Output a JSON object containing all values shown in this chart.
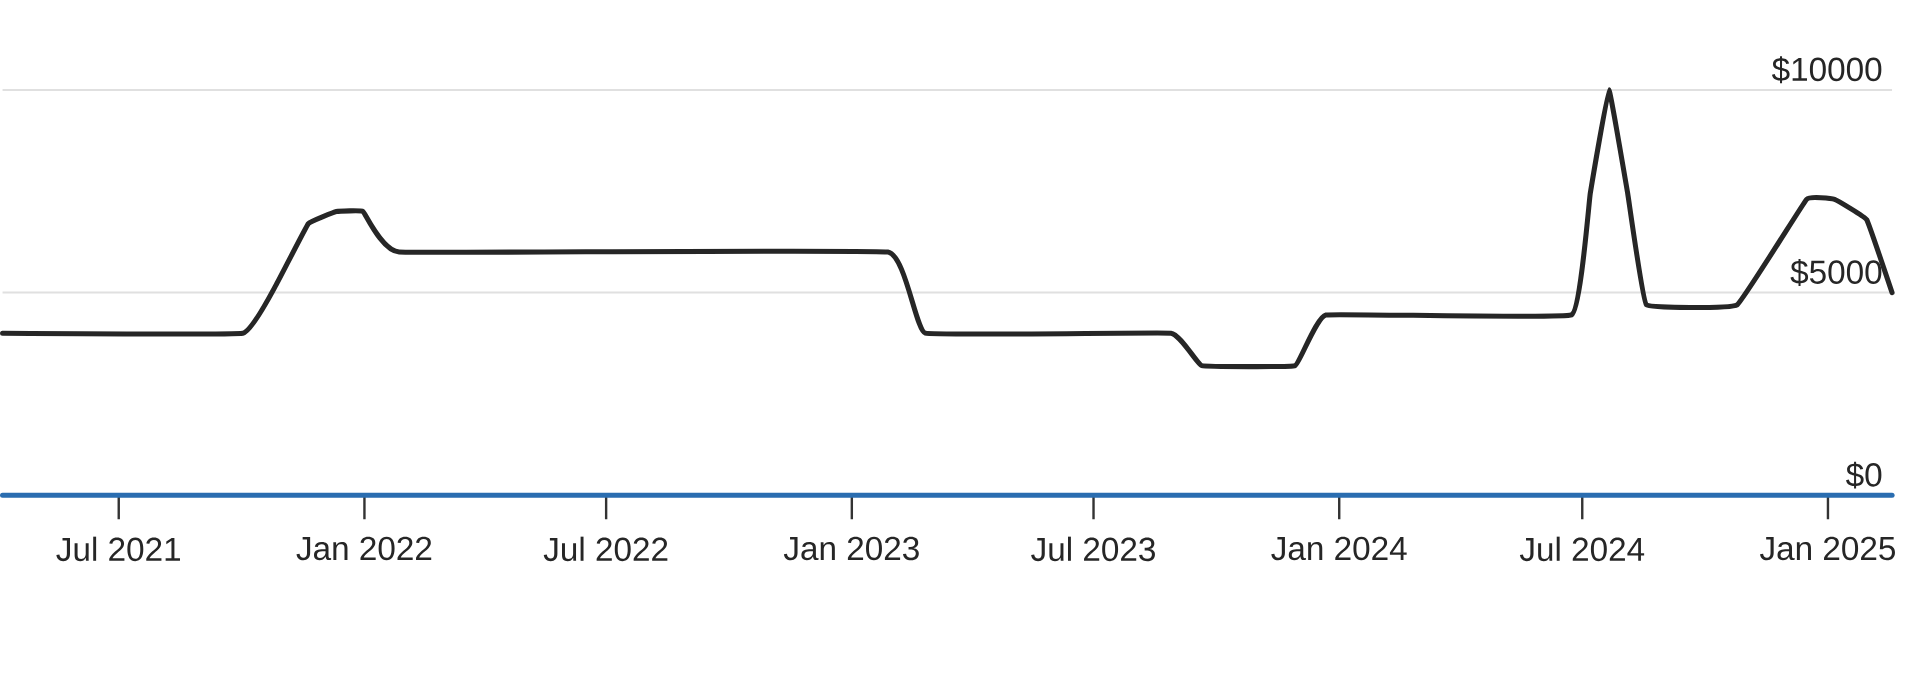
{
  "chart_data": {
    "type": "line",
    "series": [
      {
        "color": "#262626",
        "x": [
          "2021-04-05",
          "2021-10-02",
          "2021-10-27",
          "2021-11-20",
          "2021-12-11",
          "2021-12-31",
          "2022-01-27",
          "2023-01-28",
          "2023-02-25",
          "2023-08-28",
          "2023-09-20",
          "2023-11-29",
          "2023-12-22",
          "2024-06-23",
          "2024-07-07",
          "2024-07-21",
          "2024-08-04",
          "2024-08-18",
          "2024-10-25",
          "2024-12-16",
          "2025-01-06",
          "2025-01-30",
          "2025-02-18"
        ],
        "values": [
          4000,
          4000,
          5200,
          6700,
          7000,
          7000,
          6000,
          6000,
          4000,
          4000,
          3200,
          3200,
          4450,
          4450,
          7450,
          10000,
          7450,
          4700,
          4700,
          7300,
          7300,
          6800,
          5000
        ]
      },
      {
        "color": "#2a6db0",
        "x": [
          "2021-04-05",
          "2025-02-18"
        ],
        "values": [
          0,
          0
        ]
      }
    ],
    "xlim": [
      "2021-04-05",
      "2025-02-18"
    ],
    "ylim": [
      0,
      10000
    ],
    "xticks": [
      {
        "value": "2021-07-01",
        "label": "Jul 2021"
      },
      {
        "value": "2022-01-01",
        "label": "Jan 2022"
      },
      {
        "value": "2022-07-01",
        "label": "Jul 2022"
      },
      {
        "value": "2023-01-01",
        "label": "Jan 2023"
      },
      {
        "value": "2023-07-01",
        "label": "Jul 2023"
      },
      {
        "value": "2024-01-01",
        "label": "Jan 2024"
      },
      {
        "value": "2024-07-01",
        "label": "Jul 2024"
      },
      {
        "value": "2025-01-01",
        "label": "Jan 2025"
      }
    ],
    "yticks": [
      {
        "value": 0,
        "label": "$0"
      },
      {
        "value": 5000,
        "label": "$5000"
      },
      {
        "value": 10000,
        "label": "$10000"
      }
    ],
    "grid": "y"
  }
}
